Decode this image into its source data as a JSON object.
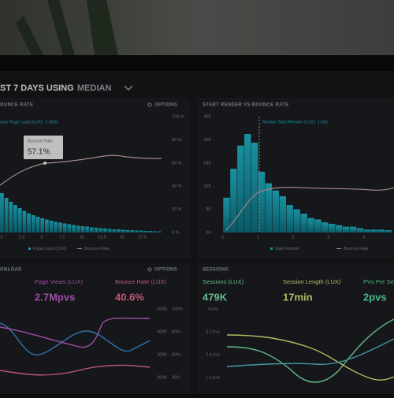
{
  "header": {
    "title_a": "ST 7 DAYS USING",
    "title_b": "MEDIAN"
  },
  "panels": [
    {
      "title": "OUNCE RATE",
      "options": "OPTIONS",
      "note": "sion Page Load (LUX): 2.056s",
      "tooltip": {
        "label": "Bounce Rate",
        "value": "57.1%"
      },
      "yticks": [
        {
          "value": 100,
          "label": "100 %"
        },
        {
          "value": 80,
          "label": "80 %"
        },
        {
          "value": 60,
          "label": "60 %"
        },
        {
          "value": 40,
          "label": "40 %"
        },
        {
          "value": 20,
          "label": "20 %"
        },
        {
          "value": 0,
          "label": "0 %"
        }
      ],
      "xticks": [
        0,
        2.5,
        5,
        7.5,
        10,
        12.5,
        15,
        17.5
      ],
      "legend": [
        "Page Load (LUX)",
        "Bounce Rate"
      ],
      "bars": [
        100,
        88,
        78,
        70,
        62,
        55,
        49,
        44,
        40,
        36,
        33,
        30,
        27,
        25,
        23,
        21,
        19,
        17,
        16,
        15,
        13,
        12,
        11,
        10,
        9,
        8,
        8,
        7,
        6,
        6,
        5,
        5,
        4,
        4,
        3,
        3
      ]
    },
    {
      "title": "START RENDER VS BOUNCE RATE",
      "note": "Median Start Render (LUX): 1.03s",
      "ylim": [
        0,
        40000
      ],
      "yticks": [
        {
          "value": 40000,
          "label": "40K"
        },
        {
          "value": 32000,
          "label": "32K"
        },
        {
          "value": 24000,
          "label": "24K"
        },
        {
          "value": 16000,
          "label": "16K"
        },
        {
          "value": 8000,
          "label": "8K"
        },
        {
          "value": 0,
          "label": "0K"
        }
      ],
      "xticks": [
        0,
        1,
        2,
        3,
        4
      ],
      "legend": [
        "Start Render",
        "Bounce Rate"
      ],
      "bars": {
        "x": [
          0.1,
          0.3,
          0.5,
          0.7,
          0.9,
          1.1,
          1.3,
          1.5,
          1.7,
          1.9,
          2.1,
          2.3,
          2.5,
          2.7,
          2.9,
          3.1,
          3.3,
          3.5,
          3.7,
          3.9,
          4.1,
          4.3,
          4.5,
          4.7
        ],
        "values": [
          12000,
          22000,
          30000,
          34000,
          31000,
          21000,
          17000,
          14500,
          12500,
          9500,
          8000,
          6500,
          5000,
          4500,
          3500,
          3000,
          2500,
          2000,
          2000,
          1500,
          1000,
          1000,
          1000,
          800
        ]
      }
    },
    {
      "title": "ONLOAD",
      "options": "OPTIONS",
      "metrics": [
        {
          "label": "Page Views (LUX)",
          "value": "2.7Mpvs"
        },
        {
          "label": "Bounce Rate (LUX)",
          "value": "40.6%"
        }
      ],
      "yticks_left": [
        "500K",
        "400K",
        "300K",
        "200K"
      ],
      "yticks_right": [
        "100%",
        "80%",
        "60%",
        "40%"
      ]
    },
    {
      "title": "SESSIONS",
      "metrics": [
        {
          "label": "Sessions (LUX)",
          "value": "479K"
        },
        {
          "label": "Session Length (LUX)",
          "value": "17min"
        },
        {
          "label": "PVs Per Se",
          "value": "2pvs"
        }
      ],
      "yticks": [
        "4 pvs",
        "3.2 pvs",
        "2.4 pvs",
        "1.6 pvs"
      ]
    }
  ]
}
